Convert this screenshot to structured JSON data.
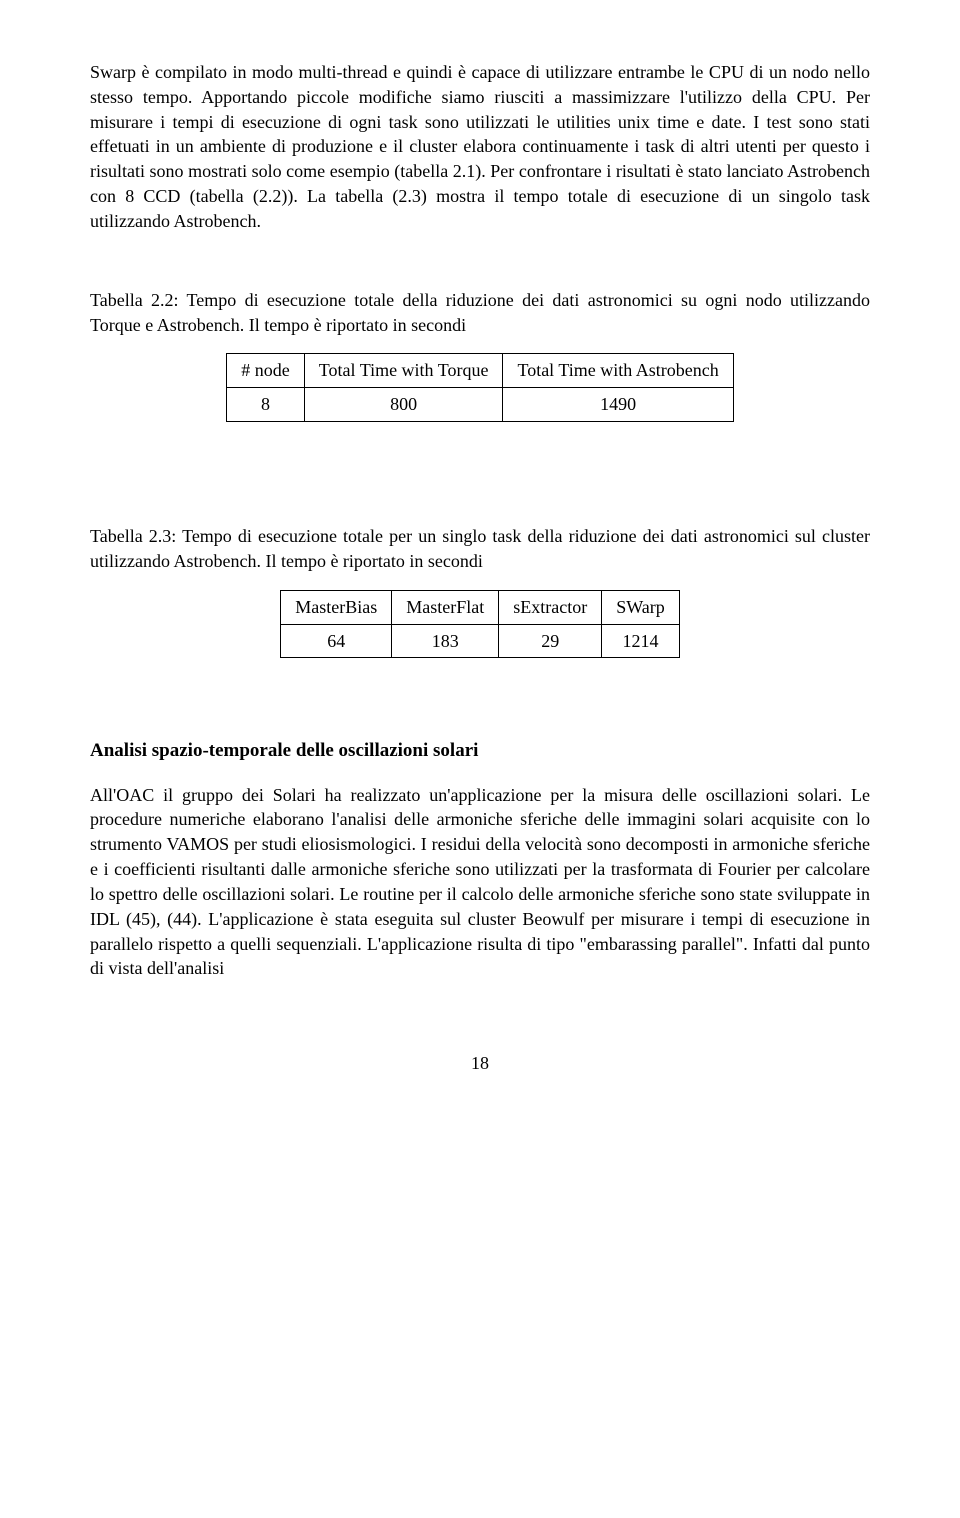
{
  "para1": "Swarp è compilato in modo multi-thread e quindi è capace di utilizzare entrambe le CPU di un nodo nello stesso tempo. Apportando piccole modifiche siamo riusciti a massimizzare l'utilizzo della CPU. Per misurare i tempi di esecuzione di ogni task sono utilizzati le utilities unix time e date. I test sono stati effetuati in un ambiente di produzione e il cluster elabora continuamente i task di altri utenti per questo i risultati sono mostrati solo come esempio (tabella 2.1). Per confrontare i risultati è stato lanciato Astrobench con 8 CCD (tabella (2.2)). La tabella (2.3) mostra il tempo totale di esecuzione di un singolo task utilizzando Astrobench.",
  "table22": {
    "caption": "Tabella 2.2: Tempo di esecuzione totale della riduzione dei dati astronomici su ogni nodo utilizzando Torque e Astrobench. Il tempo è riportato in secondi",
    "headers": [
      "# node",
      "Total Time with Torque",
      "Total Time with Astrobench"
    ],
    "row": [
      "8",
      "800",
      "1490"
    ]
  },
  "table23": {
    "caption": "Tabella 2.3: Tempo di esecuzione totale per un singlo task della riduzione dei dati astronomici sul cluster utilizzando Astrobench. Il tempo è riportato in secondi",
    "headers": [
      "MasterBias",
      "MasterFlat",
      "sExtractor",
      "SWarp"
    ],
    "row": [
      "64",
      "183",
      "29",
      "1214"
    ]
  },
  "section_heading": "Analisi spazio-temporale delle oscillazioni solari",
  "para2": "All'OAC il gruppo dei Solari ha realizzato un'applicazione per la misura delle oscillazioni solari. Le procedure numeriche elaborano l'analisi delle armoniche sferiche delle immagini solari acquisite con lo strumento VAMOS per studi eliosismologici. I residui della velocità sono decomposti in armoniche sferiche e i coefficienti risultanti dalle armoniche sferiche sono utilizzati per la trasformata di Fourier per calcolare lo spettro delle oscillazioni solari. Le routine per il calcolo delle armoniche sferiche sono state sviluppate in IDL (45), (44). L'applicazione è stata eseguita sul cluster Beowulf per misurare i tempi di esecuzione in parallelo rispetto a quelli sequenziali. L'applicazione risulta di tipo \"embarassing parallel\". Infatti dal punto di vista dell'analisi",
  "page_number": "18"
}
